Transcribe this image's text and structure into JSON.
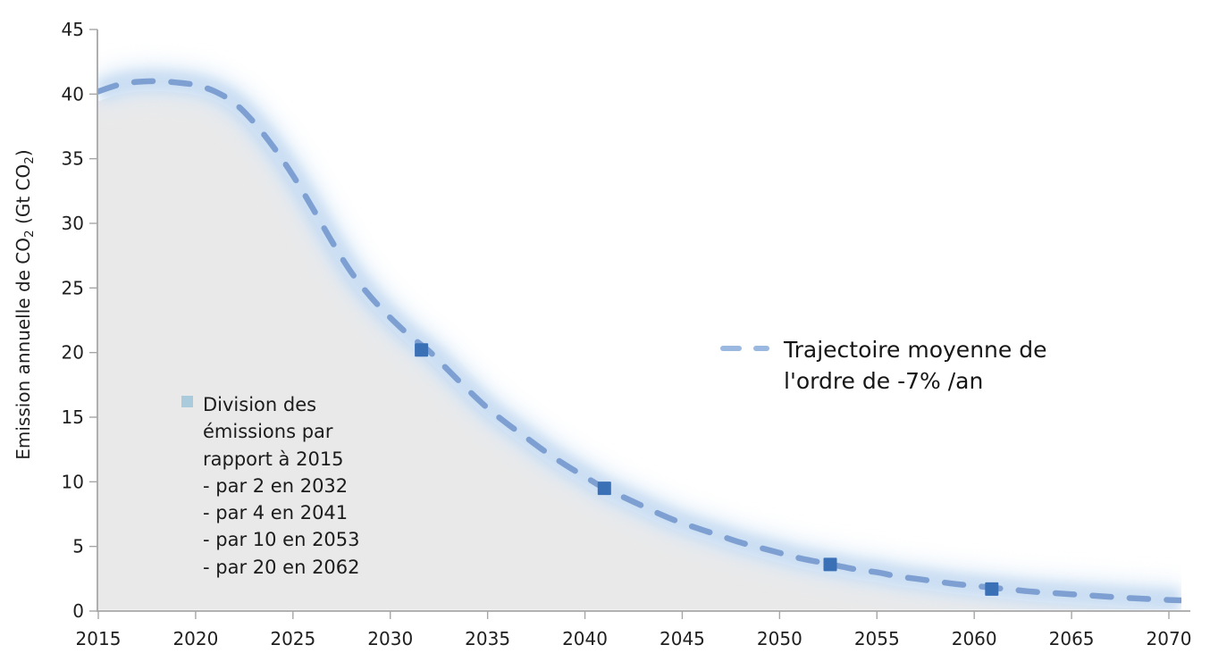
{
  "chart_data": {
    "type": "area",
    "title": "",
    "ylabel_parts": [
      "Emission annuelle de CO",
      "2",
      " (Gt CO",
      "2",
      ")"
    ],
    "xlabel": "",
    "xlim": [
      2015,
      2070
    ],
    "ylim": [
      0,
      45
    ],
    "grid": false,
    "x_ticks": [
      2015,
      2020,
      2025,
      2030,
      2035,
      2040,
      2045,
      2050,
      2055,
      2060,
      2065,
      2070
    ],
    "y_ticks": [
      0,
      5,
      10,
      15,
      20,
      25,
      30,
      35,
      40,
      45
    ],
    "series": [
      {
        "name": "Trajectoire moyenne de l'ordre de -7% /an",
        "style": "dashed-line-with-area",
        "x": [
          2015,
          2016,
          2017,
          2018,
          2019,
          2020,
          2021,
          2022,
          2023,
          2024,
          2025,
          2026,
          2027,
          2028,
          2029,
          2030,
          2031,
          2032,
          2033,
          2034,
          2035,
          2036,
          2037,
          2038,
          2039,
          2040,
          2041,
          2042,
          2043,
          2044,
          2045,
          2046,
          2047,
          2048,
          2049,
          2050,
          2051,
          2052,
          2053,
          2054,
          2055,
          2056,
          2057,
          2058,
          2059,
          2060,
          2061,
          2062,
          2063,
          2064,
          2065,
          2066,
          2067,
          2068,
          2069,
          2070
        ],
        "values": [
          40.2,
          40.7,
          40.95,
          41.0,
          40.9,
          40.7,
          40.2,
          39.3,
          37.8,
          35.9,
          33.7,
          31.2,
          28.6,
          26.2,
          24.3,
          22.7,
          21.3,
          20.1,
          18.6,
          17.1,
          15.7,
          14.5,
          13.4,
          12.3,
          11.3,
          10.4,
          9.5,
          8.8,
          8.1,
          7.4,
          6.8,
          6.3,
          5.8,
          5.3,
          4.9,
          4.5,
          4.1,
          3.8,
          3.5,
          3.2,
          3.0,
          2.7,
          2.5,
          2.3,
          2.1,
          1.95,
          1.8,
          1.65,
          1.5,
          1.4,
          1.3,
          1.2,
          1.1,
          1.0,
          0.93,
          0.86
        ]
      }
    ],
    "markers": {
      "shape": "square",
      "meaning": "points de division des émissions par rapport à 2015",
      "points": [
        [
          2031.6,
          20.2
        ],
        [
          2041,
          9.5
        ],
        [
          2052.6,
          3.6
        ],
        [
          2060.9,
          1.7
        ]
      ]
    },
    "legend": {
      "position": "right-middle",
      "line1": "Trajectoire moyenne de",
      "line2": "l'ordre de -7% /an"
    },
    "annotation": {
      "lines": [
        "Division des",
        "émissions par",
        "rapport à 2015",
        "- par 2 en 2032",
        "- par 4 en 2041",
        "- par 10 en 2053",
        "- par 20 en 2062"
      ]
    },
    "colors": {
      "dashed_line": "#7e9fd1",
      "glow_inner": "#c7dcf2",
      "glow_outer": "#ddeaf8",
      "marker": "#3a70b5",
      "area_fill": "#e9e9e9",
      "axis": "#a6a6a6",
      "tick_text": "#1f1f1f",
      "legend_dash_sample": "#9bb9e0",
      "annotation_bullet": "#a9cbdc"
    }
  }
}
